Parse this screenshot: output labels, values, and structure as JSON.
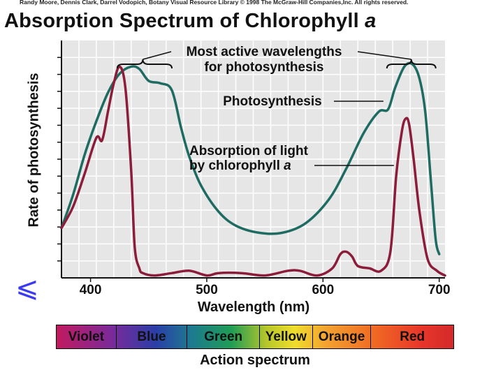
{
  "header": {
    "credit": "Randy Moore, Dennis Clark, Darrel Vodopich, Botany Visual Resource Library © 1998 The McGraw-Hill Companies,Inc. All rights reserved.",
    "title_main": "Absorption Spectrum of Chlorophyll ",
    "title_italic": "a"
  },
  "chart_data": {
    "type": "line",
    "title": "Absorption Spectrum of Chlorophyll a",
    "xlabel": "Wavelength (nm)",
    "ylabel": "Rate of photosynthesis",
    "xlim": [
      375,
      705
    ],
    "ylim": [
      0,
      100
    ],
    "x_ticks": [
      400,
      500,
      600,
      700
    ],
    "grid": true,
    "series": [
      {
        "name": "Photosynthesis",
        "color": "#1e6b62",
        "x": [
          375,
          385,
          395,
          405,
          415,
          425,
          435,
          442,
          450,
          460,
          470,
          478,
          485,
          495,
          510,
          525,
          545,
          565,
          585,
          605,
          620,
          635,
          648,
          656,
          662,
          670,
          677,
          683,
          688,
          693,
          697,
          700
        ],
        "y": [
          21,
          35,
          52,
          66,
          78,
          86,
          89,
          88,
          83,
          82,
          79,
          63,
          51,
          39,
          28,
          22,
          19,
          19,
          23,
          33,
          46,
          61,
          70,
          71,
          80,
          89,
          90,
          84,
          70,
          40,
          16,
          10
        ]
      },
      {
        "name": "Absorption of light by chlorophyll a",
        "color": "#8b1d3a",
        "x": [
          375,
          385,
          395,
          405,
          410,
          415,
          420,
          425,
          430,
          435,
          438,
          442,
          445,
          455,
          470,
          485,
          500,
          510,
          530,
          550,
          570,
          580,
          595,
          608,
          615,
          620,
          625,
          630,
          640,
          650,
          658,
          663,
          668,
          671,
          674,
          678,
          683,
          690,
          698,
          705
        ],
        "y": [
          21,
          30,
          44,
          59,
          58,
          70,
          82,
          89,
          80,
          45,
          13,
          4,
          2,
          1,
          2,
          3,
          1,
          2,
          2,
          1,
          3,
          3,
          1,
          4,
          10,
          11,
          9,
          5,
          4,
          3,
          11,
          43,
          62,
          67,
          65,
          50,
          28,
          8,
          3,
          1
        ]
      }
    ],
    "annotations": [
      "Most active wavelengths",
      "for photosynthesis",
      "Photosynthesis",
      "Absorption of light",
      "by chlorophyll a"
    ]
  },
  "spectrum": {
    "segments": [
      "Violet",
      "Blue",
      "Green",
      "Yellow",
      "Orange",
      "Red"
    ],
    "caption": "Action spectrum"
  },
  "side_glyph": "⩽"
}
